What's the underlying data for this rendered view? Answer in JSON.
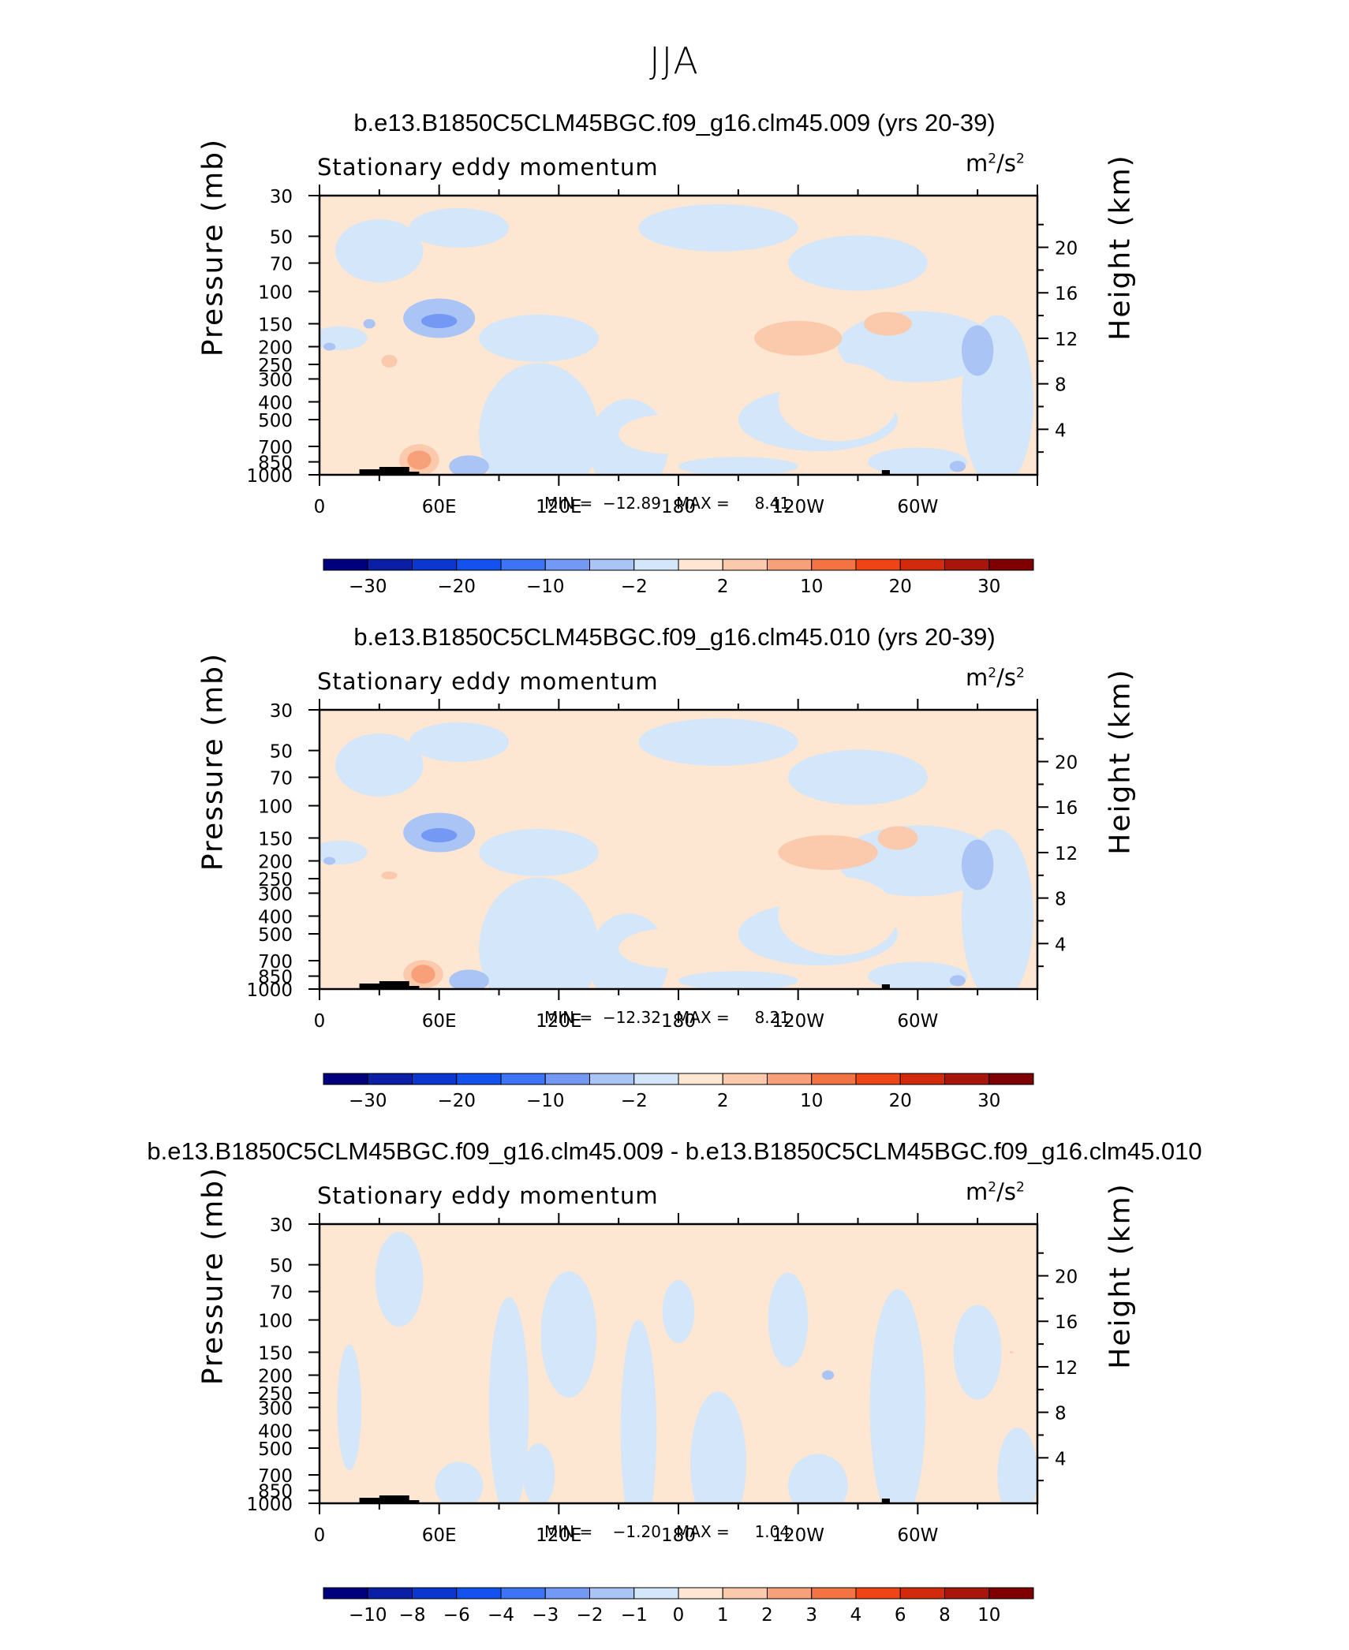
{
  "figure": {
    "title": "JJA",
    "panels": [
      {
        "title": "b.e13.B1850C5CLM45BGC.f09_g16.clm45.009 (yrs 20-39)",
        "left_label": "Stationary eddy momentum",
        "units": "m²/s²",
        "ylabel_left": "Pressure (mb)",
        "ylabel_right": "Height (km)",
        "minmax": "MIN =  −12.89   MAX =     8.41"
      },
      {
        "title": "b.e13.B1850C5CLM45BGC.f09_g16.clm45.010 (yrs 20-39)",
        "left_label": "Stationary eddy momentum",
        "units": "m²/s²",
        "ylabel_left": "Pressure (mb)",
        "ylabel_right": "Height (km)",
        "minmax": "MIN =  −12.32   MAX =     8.21"
      },
      {
        "title": "b.e13.B1850C5CLM45BGC.f09_g16.clm45.009 - b.e13.B1850C5CLM45BGC.f09_g16.clm45.010",
        "left_label": "Stationary eddy momentum",
        "units": "m²/s²",
        "ylabel_left": "Pressure (mb)",
        "ylabel_right": "Height (km)",
        "minmax": "MIN =    −1.20   MAX =     1.04"
      }
    ]
  },
  "chart_data": [
    {
      "type": "heatmap",
      "x_ticks": [
        "0",
        "60E",
        "120E",
        "180",
        "120W",
        "60W"
      ],
      "y_ticks_pressure": [
        "30",
        "50",
        "70",
        "100",
        "150",
        "200",
        "250",
        "300",
        "400",
        "500",
        "700",
        "850",
        "1000"
      ],
      "y_ticks_height": [
        "20",
        "16",
        "12",
        "8",
        "4"
      ],
      "ylim": [
        1000,
        30
      ],
      "colorbar_labels": [
        "−30",
        "−20",
        "−10",
        "−2",
        "2",
        "10",
        "20",
        "30"
      ],
      "colorbar_colors": [
        "#00007f",
        "#0a1fa6",
        "#0b37cf",
        "#1452f0",
        "#3c74f5",
        "#7399f5",
        "#a9c4f5",
        "#d3e6fa",
        "#fde6d2",
        "#fbc9ab",
        "#f7a07a",
        "#f47343",
        "#ef4416",
        "#d12a0c",
        "#a8160b",
        "#7f0000"
      ],
      "features": [
        {
          "label": "negative max",
          "lon": 60,
          "p": 150,
          "value": -12.89
        },
        {
          "label": "positive max",
          "lon": 240,
          "p": 170,
          "value": 8.41
        },
        {
          "label": "positive surface",
          "lon": 52,
          "p": 800,
          "value": 6
        }
      ]
    },
    {
      "type": "heatmap",
      "x_ticks": [
        "0",
        "60E",
        "120E",
        "180",
        "120W",
        "60W"
      ],
      "y_ticks_pressure": [
        "30",
        "50",
        "70",
        "100",
        "150",
        "200",
        "250",
        "300",
        "400",
        "500",
        "700",
        "850",
        "1000"
      ],
      "y_ticks_height": [
        "20",
        "16",
        "12",
        "8",
        "4"
      ],
      "ylim": [
        1000,
        30
      ],
      "colorbar_labels": [
        "−30",
        "−20",
        "−10",
        "−2",
        "2",
        "10",
        "20",
        "30"
      ],
      "colorbar_colors": [
        "#00007f",
        "#0a1fa6",
        "#0b37cf",
        "#1452f0",
        "#3c74f5",
        "#7399f5",
        "#a9c4f5",
        "#d3e6fa",
        "#fde6d2",
        "#fbc9ab",
        "#f7a07a",
        "#f47343",
        "#ef4416",
        "#d12a0c",
        "#a8160b",
        "#7f0000"
      ],
      "features": [
        {
          "label": "negative max",
          "lon": 60,
          "p": 150,
          "value": -12.32
        },
        {
          "label": "positive max",
          "lon": 240,
          "p": 170,
          "value": 8.21
        }
      ]
    },
    {
      "type": "heatmap",
      "x_ticks": [
        "0",
        "60E",
        "120E",
        "180",
        "120W",
        "60W"
      ],
      "y_ticks_pressure": [
        "30",
        "50",
        "70",
        "100",
        "150",
        "200",
        "250",
        "300",
        "400",
        "500",
        "700",
        "850",
        "1000"
      ],
      "y_ticks_height": [
        "20",
        "16",
        "12",
        "8",
        "4"
      ],
      "ylim": [
        1000,
        30
      ],
      "colorbar_labels": [
        "−10",
        "−8",
        "−6",
        "−4",
        "−3",
        "−2",
        "−1",
        "0",
        "1",
        "2",
        "3",
        "4",
        "6",
        "8",
        "10"
      ],
      "colorbar_colors": [
        "#00007f",
        "#0a1fa6",
        "#0b37cf",
        "#1452f0",
        "#3c74f5",
        "#7399f5",
        "#a9c4f5",
        "#d3e6fa",
        "#fde6d2",
        "#fbc9ab",
        "#f7a07a",
        "#f47343",
        "#ef4416",
        "#d12a0c",
        "#a8160b",
        "#7f0000"
      ],
      "features": [
        {
          "label": "min",
          "value": -1.2
        },
        {
          "label": "max",
          "value": 1.04
        }
      ]
    }
  ]
}
